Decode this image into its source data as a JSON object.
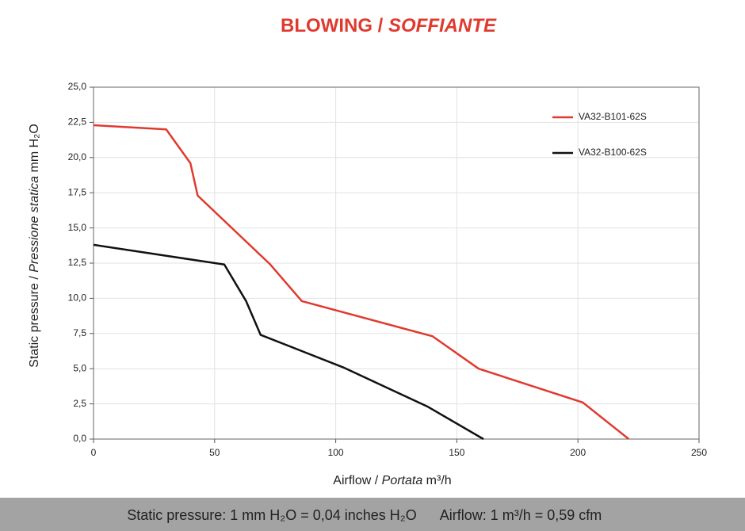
{
  "chart_data": {
    "type": "line",
    "title": [
      "BLOWING /",
      "SOFFIANTE"
    ],
    "x_label": [
      "Airflow / ",
      "Portata",
      " m³/h"
    ],
    "y_label": [
      "Static pressure / ",
      "Pressione statica",
      " mm H₂O"
    ],
    "footer": [
      "Static pressure: 1 mm H₂O = 0,04 inches H₂O",
      "Airflow: 1 m³/h = 0,59 cfm"
    ],
    "xlim": [
      0,
      250
    ],
    "xticks": [
      0,
      50,
      100,
      150,
      200,
      250
    ],
    "ylim": [
      0,
      25
    ],
    "yticks": [
      {
        "value": 0,
        "label": "0,0"
      },
      {
        "value": 2.5,
        "label": "2,5"
      },
      {
        "value": 5,
        "label": "5,0"
      },
      {
        "value": 7.5,
        "label": "7,5"
      },
      {
        "value": 10,
        "label": "10,0"
      },
      {
        "value": 12.5,
        "label": "12,5"
      },
      {
        "value": 15,
        "label": "15,0"
      },
      {
        "value": 17.5,
        "label": "17,5"
      },
      {
        "value": 20,
        "label": "20,0"
      },
      {
        "value": 22.5,
        "label": "22,5"
      },
      {
        "value": 25,
        "label": "25,0"
      }
    ],
    "grid": true,
    "legend": "upper right",
    "series": [
      {
        "name": "VA32-B101-62S",
        "color": "#e03a2f",
        "x": [
          0,
          30,
          40,
          43,
          73,
          86,
          140,
          159,
          202,
          221
        ],
        "values": [
          22.3,
          22.0,
          19.6,
          17.3,
          12.4,
          9.8,
          7.3,
          5.0,
          2.6,
          0
        ]
      },
      {
        "name": "VA32-B100-62S",
        "color": "#111111",
        "x": [
          0,
          54,
          63,
          69,
          103,
          138,
          161
        ],
        "values": [
          13.8,
          12.4,
          9.8,
          7.4,
          5.1,
          2.3,
          0
        ]
      }
    ]
  }
}
